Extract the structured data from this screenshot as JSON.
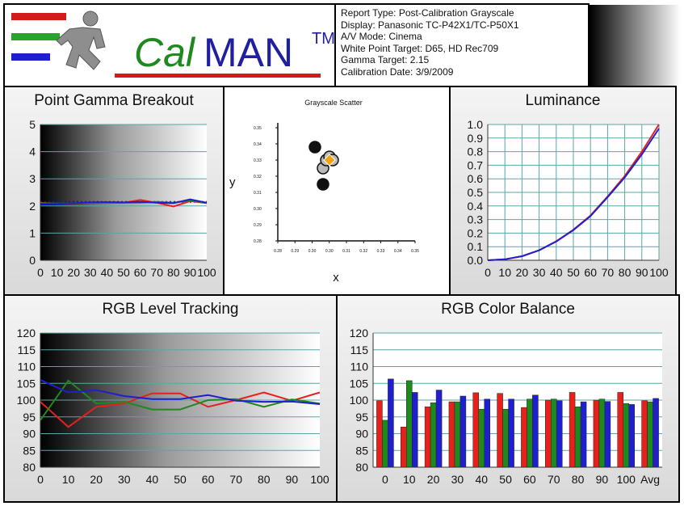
{
  "header": {
    "logo_text": "CalMAN",
    "logo_tm": "TM",
    "report": [
      "Report Type: Post-Calibration Grayscale",
      "Display: Panasonic TC-P42X1/TC-P50X1",
      "A/V Mode: Cinema",
      "White Point Target: D65, HD Rec709",
      "Gamma Target: 2.15",
      "Calibration Date: 3/9/2009"
    ]
  },
  "colors": {
    "red": "#e8201c",
    "green": "#1e8a1e",
    "blue": "#1f1fd0",
    "dotted": "#1a1a8c"
  },
  "chart_data": [
    {
      "id": "gamma",
      "type": "line",
      "title": "Point Gamma Breakout",
      "x": [
        0,
        10,
        20,
        30,
        40,
        50,
        60,
        70,
        80,
        90,
        100
      ],
      "xticks": [
        "0",
        "10",
        "20",
        "30",
        "40",
        "50",
        "60",
        "70",
        "80",
        "90",
        "100"
      ],
      "yticks": [
        "0",
        "1",
        "2",
        "3",
        "4",
        "5"
      ],
      "ylim": [
        0,
        5
      ],
      "target": 2.15,
      "series": [
        {
          "color": "red",
          "values": [
            2.12,
            2.08,
            2.09,
            2.12,
            2.12,
            2.12,
            2.22,
            2.12,
            1.98,
            2.18,
            2.1
          ]
        },
        {
          "color": "green",
          "values": [
            2.1,
            2.09,
            2.1,
            2.12,
            2.12,
            2.12,
            2.12,
            2.15,
            2.12,
            2.2,
            2.12
          ]
        },
        {
          "color": "blue",
          "values": [
            2.08,
            2.08,
            2.1,
            2.13,
            2.14,
            2.13,
            2.15,
            2.12,
            2.1,
            2.24,
            2.12
          ]
        }
      ]
    },
    {
      "id": "scatter",
      "type": "scatter",
      "title": "Grayscale Scatter",
      "xlabel": "x",
      "ylabel": "y",
      "xticks": [
        "0.28",
        "0.29",
        "0.30",
        "0.30",
        "0.31",
        "0.32",
        "0.33",
        "0.34",
        "0.35"
      ],
      "yticks": [
        "0.28",
        "0.29",
        "0.30",
        "0.31",
        "0.32",
        "0.33",
        "0.34",
        "0.35"
      ],
      "points": [
        {
          "x": 0.303,
          "y": 0.338,
          "color": "black"
        },
        {
          "x": 0.308,
          "y": 0.315,
          "color": "black"
        },
        {
          "x": 0.308,
          "y": 0.325,
          "color": "gray"
        },
        {
          "x": 0.31,
          "y": 0.33,
          "color": "gray"
        },
        {
          "x": 0.312,
          "y": 0.332,
          "color": "gray"
        },
        {
          "x": 0.314,
          "y": 0.33,
          "color": "gray"
        },
        {
          "x": 0.312,
          "y": 0.33,
          "color": "orange"
        }
      ]
    },
    {
      "id": "luminance",
      "type": "line",
      "title": "Luminance",
      "x": [
        0,
        10,
        20,
        30,
        40,
        50,
        60,
        70,
        80,
        90,
        100
      ],
      "xticks": [
        "0",
        "10",
        "20",
        "30",
        "40",
        "50",
        "60",
        "70",
        "80",
        "90",
        "100"
      ],
      "yticks": [
        "0.0",
        "0.1",
        "0.2",
        "0.3",
        "0.4",
        "0.5",
        "0.6",
        "0.7",
        "0.8",
        "0.9",
        "1.0"
      ],
      "ylim": [
        0,
        1
      ],
      "series": [
        {
          "color": "red",
          "values": [
            0,
            0.007,
            0.03,
            0.074,
            0.14,
            0.225,
            0.33,
            0.47,
            0.62,
            0.8,
            1.0
          ]
        },
        {
          "color": "blue",
          "values": [
            0,
            0.007,
            0.03,
            0.073,
            0.138,
            0.222,
            0.325,
            0.465,
            0.61,
            0.78,
            0.97
          ]
        }
      ]
    },
    {
      "id": "rgb_tracking",
      "type": "line",
      "title": "RGB Level Tracking",
      "x": [
        0,
        10,
        20,
        30,
        40,
        50,
        60,
        70,
        80,
        90,
        100
      ],
      "xticks": [
        "0",
        "10",
        "20",
        "30",
        "40",
        "50",
        "60",
        "70",
        "80",
        "90",
        "100"
      ],
      "yticks": [
        "80",
        "85",
        "90",
        "95",
        "100",
        "105",
        "110",
        "115",
        "120"
      ],
      "ylim": [
        80,
        120
      ],
      "series": [
        {
          "color": "red",
          "values": [
            99.5,
            92,
            98,
            99,
            102,
            102,
            98,
            100,
            102.3,
            99.8,
            102.3
          ]
        },
        {
          "color": "green",
          "values": [
            94,
            105.8,
            99,
            99.5,
            97.2,
            97.2,
            100,
            100.3,
            98,
            100.2,
            99
          ]
        },
        {
          "color": "blue",
          "values": [
            106,
            102.3,
            103,
            101.2,
            100.3,
            100.3,
            101.5,
            99.8,
            99.5,
            99.6,
            98.8
          ]
        }
      ]
    },
    {
      "id": "rgb_balance",
      "type": "bar",
      "title": "RGB Color Balance",
      "categories": [
        "0",
        "10",
        "20",
        "30",
        "40",
        "50",
        "60",
        "70",
        "80",
        "90",
        "100",
        "Avg"
      ],
      "yticks": [
        "80",
        "85",
        "90",
        "95",
        "100",
        "105",
        "110",
        "115",
        "120"
      ],
      "ylim": [
        80,
        120
      ],
      "series": [
        {
          "color": "red",
          "values": [
            99.8,
            92,
            98,
            99.5,
            102.2,
            102,
            97.8,
            100,
            102.3,
            100,
            102.3,
            99.8
          ]
        },
        {
          "color": "green",
          "values": [
            94,
            105.8,
            99.2,
            99.5,
            97.3,
            97.3,
            100.3,
            100.3,
            98,
            100.3,
            99,
            99.5
          ]
        },
        {
          "color": "blue",
          "values": [
            106.3,
            102.3,
            103,
            101.2,
            100.3,
            100.3,
            101.5,
            99.8,
            99.5,
            99.6,
            98.7,
            100.5
          ]
        }
      ]
    }
  ]
}
